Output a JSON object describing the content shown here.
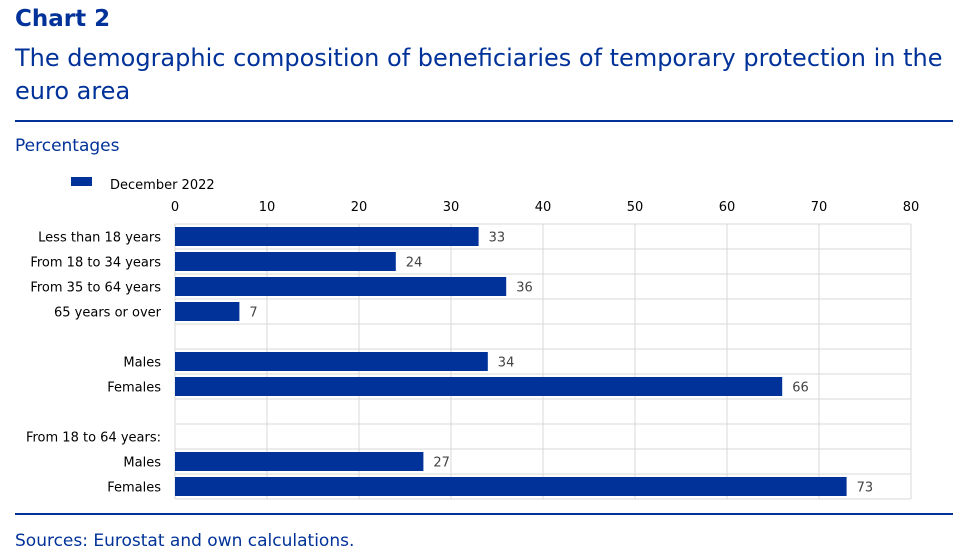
{
  "header": {
    "chart_label": "Chart 2",
    "title": "The demographic composition of beneficiaries of temporary protection in the euro area"
  },
  "units_label": "Percentages",
  "source": "Sources: Eurostat and own calculations.",
  "colors": {
    "accent": "#003299",
    "grid": "#d9d9d9",
    "text": "#000000"
  },
  "chart_data": {
    "type": "bar",
    "orientation": "horizontal",
    "categories": [
      "Less than 18 years",
      "From 18 to 34 years",
      "From 35 to 64 years",
      "65 years or over",
      "",
      "Males",
      "Females",
      "",
      "From 18 to 64 years:",
      "Males",
      "Females"
    ],
    "series": [
      {
        "name": "December 2022",
        "values": [
          33,
          24,
          36,
          7,
          null,
          34,
          66,
          null,
          null,
          27,
          73
        ]
      }
    ],
    "xlim": [
      0,
      80
    ],
    "xticks": [
      0,
      10,
      20,
      30,
      40,
      50,
      60,
      70,
      80
    ],
    "grid": true,
    "legend": "top-left",
    "data_labels": true
  }
}
